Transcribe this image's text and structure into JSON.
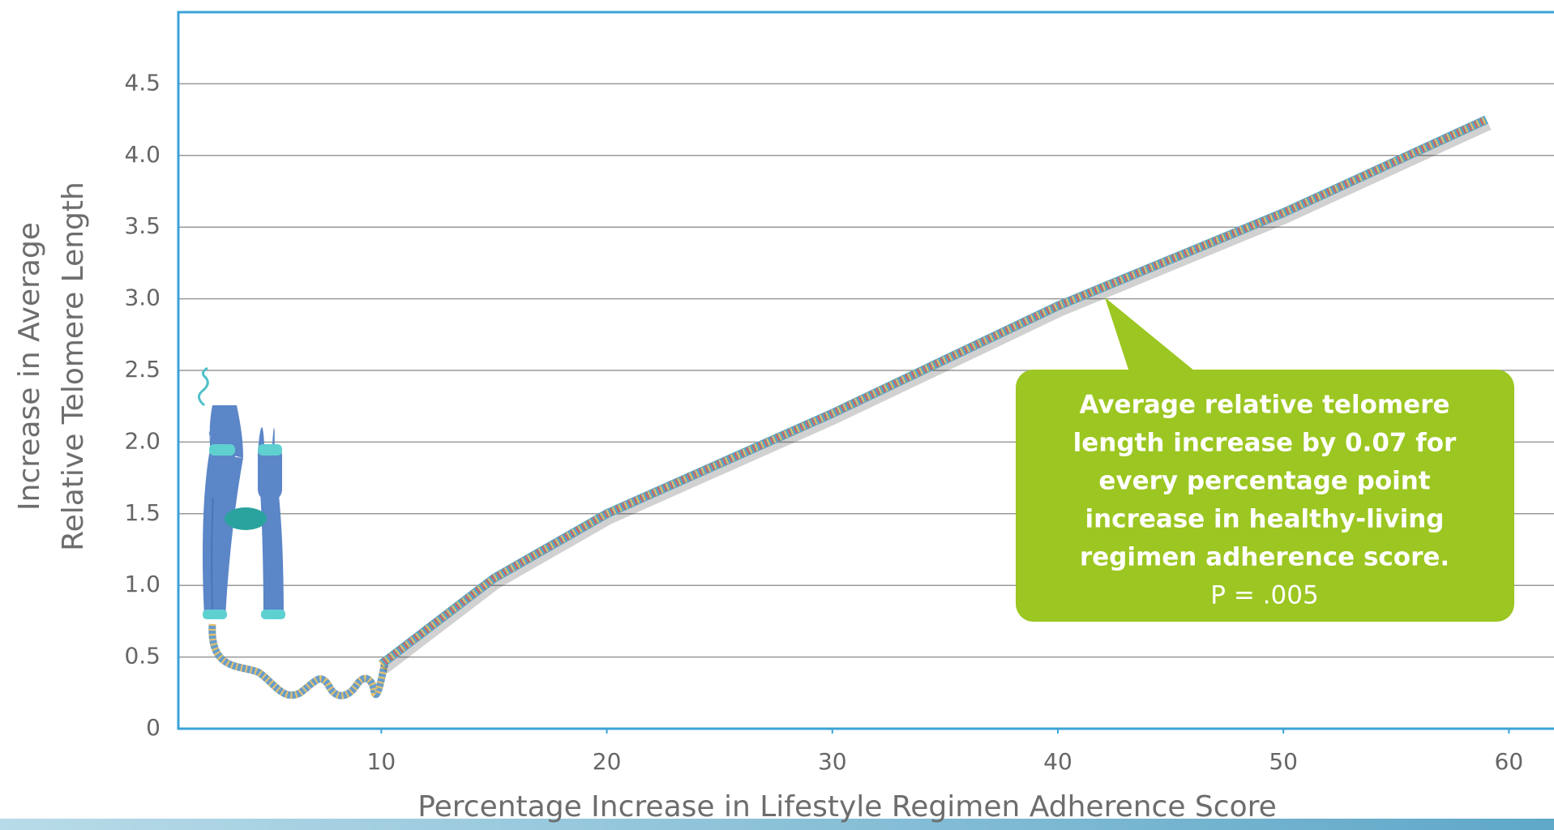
{
  "chart_data": {
    "type": "line",
    "x_label": "Percentage Increase in Lifestyle Regimen Adherence Score",
    "y_label": [
      "Increase in Average",
      "Relative Telomere Length"
    ],
    "annotation": [
      "Average relative telomere",
      "length increase by 0.07 for",
      "every percentage point",
      "increase in healthy-living",
      "regimen adherence score.",
      "P = .005"
    ],
    "x": [
      10,
      15,
      20,
      30,
      40,
      50,
      59
    ],
    "series": [
      {
        "color": "#5ba4c4",
        "values": [
          0.45,
          1.05,
          1.5,
          2.2,
          2.95,
          3.6,
          4.25
        ]
      }
    ],
    "xlim": [
      1,
      62
    ],
    "xticks": [
      10,
      20,
      30,
      40,
      50,
      60
    ],
    "ylim": [
      0,
      5
    ],
    "yticks": [
      0,
      0.5,
      {
        "value": 1,
        "label": "1.0"
      },
      1.5,
      {
        "value": 2,
        "label": "2.0"
      },
      2.5,
      {
        "value": 3,
        "label": "3.0"
      },
      3.5,
      {
        "value": 4,
        "label": "4.0"
      },
      4.5
    ],
    "grid": true
  }
}
